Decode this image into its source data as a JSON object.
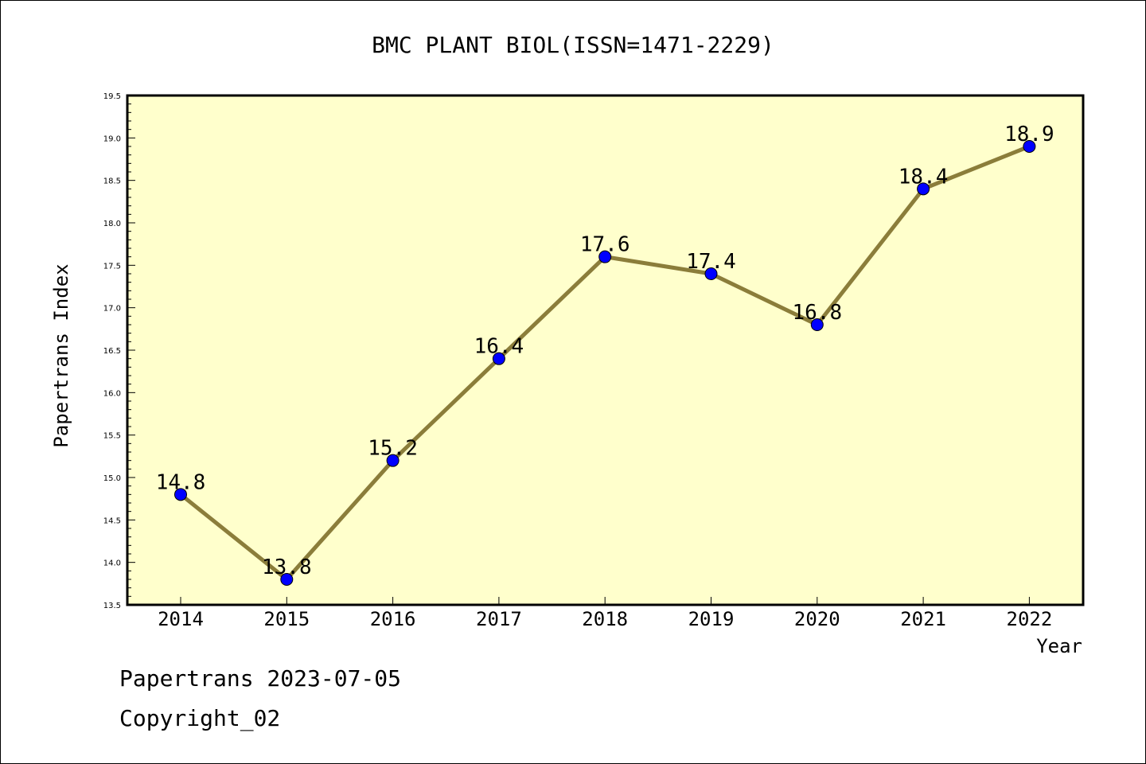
{
  "chart_data": {
    "type": "line",
    "title": "BMC PLANT BIOL(ISSN=1471-2229)",
    "xlabel": "Year",
    "ylabel": "Papertrans Index",
    "categories": [
      "2014",
      "2015",
      "2016",
      "2017",
      "2018",
      "2019",
      "2020",
      "2021",
      "2022"
    ],
    "series": [
      {
        "values": [
          14.8,
          13.8,
          15.2,
          16.4,
          17.6,
          17.4,
          16.8,
          18.4,
          18.9
        ],
        "labels": [
          "14.8",
          "13.8",
          "15.2",
          "16.4",
          "17.6",
          "17.4",
          "16.8",
          "18.4",
          "18.9"
        ]
      }
    ],
    "ylim": [
      13.5,
      19.5
    ],
    "yticks": [
      "13.5",
      "14.0",
      "14.5",
      "15.0",
      "15.5",
      "16.0",
      "16.5",
      "17.0",
      "17.5",
      "18.0",
      "18.5",
      "19.0",
      "19.5"
    ],
    "grid": false,
    "colors": {
      "plot_background": "#ffffcc",
      "line": "#8b7d3a",
      "marker": "#0000ff",
      "axes": "#000000"
    }
  },
  "footer": {
    "line1": "Papertrans 2023-07-05",
    "line2": "Copyright_02"
  }
}
